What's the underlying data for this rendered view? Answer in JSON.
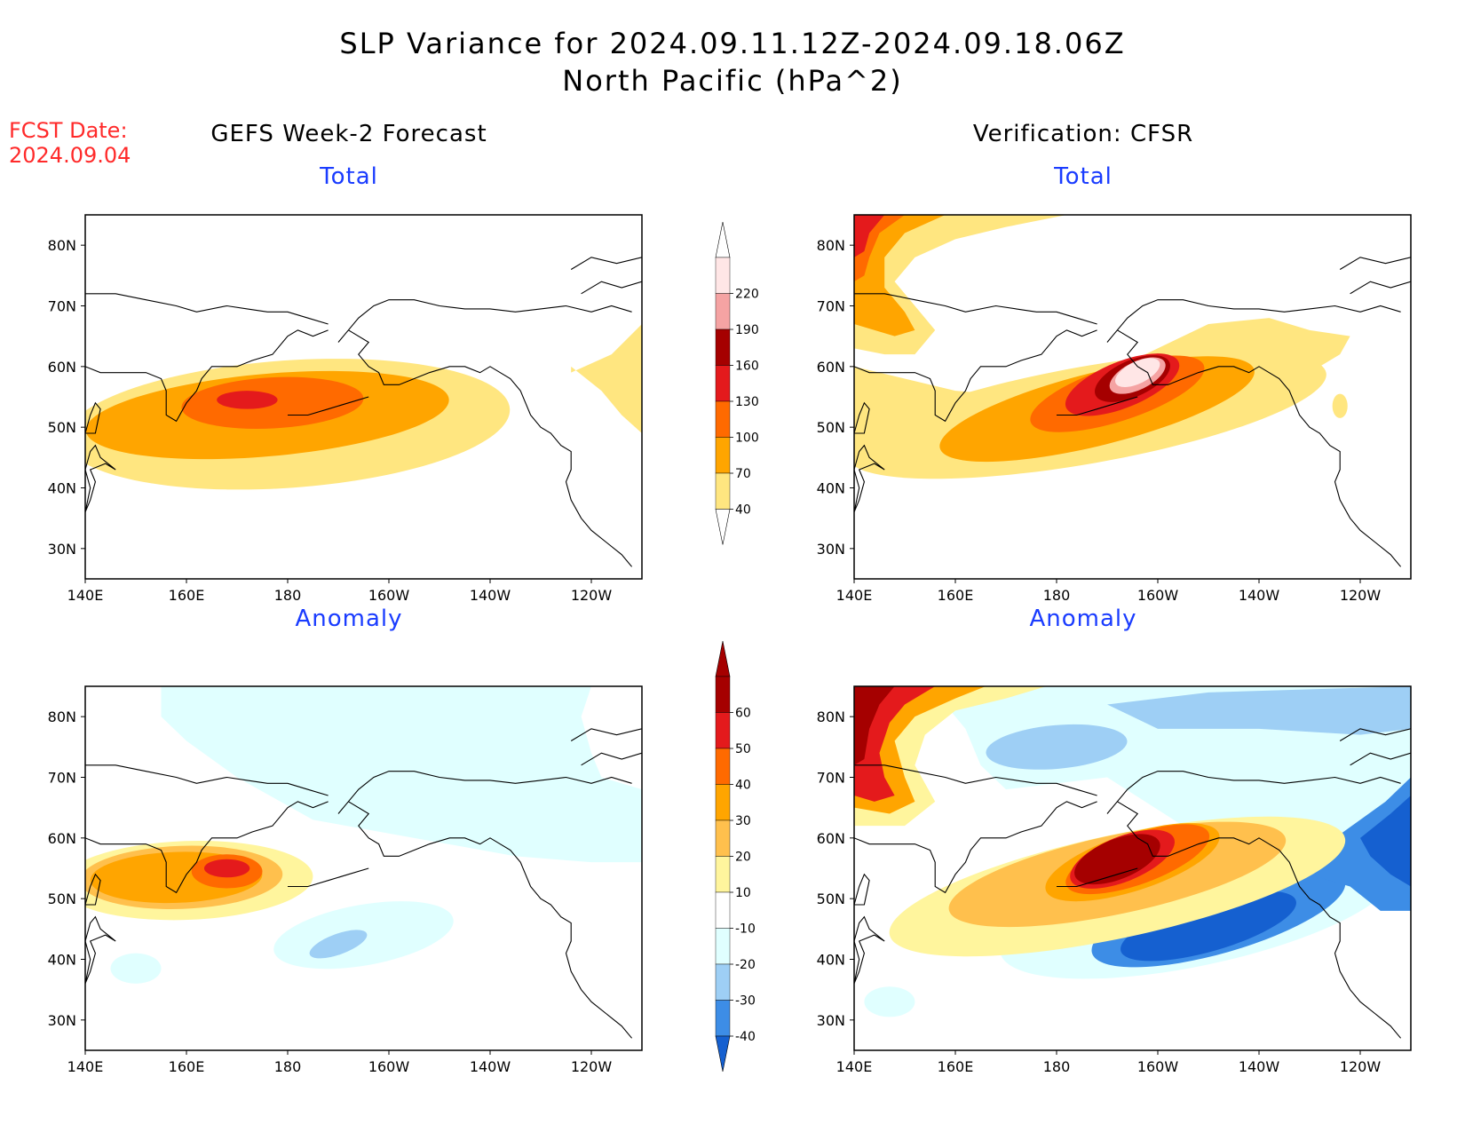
{
  "header": {
    "title_line1": "SLP Variance for 2024.09.11.12Z-2024.09.18.06Z",
    "title_line2": "North Pacific (hPa^2)",
    "fcst_label": "FCST Date:",
    "fcst_date": "2024.09.04"
  },
  "columns": {
    "left_title": "GEFS Week-2 Forecast",
    "right_title": "Verification: CFSR"
  },
  "panels": {
    "top_left_subtitle": "Total",
    "top_right_subtitle": "Total",
    "bottom_left_subtitle": "Anomaly",
    "bottom_right_subtitle": "Anomaly"
  },
  "axes": {
    "lat_ticks": [
      "80N",
      "70N",
      "60N",
      "50N",
      "40N",
      "30N"
    ],
    "lat_values": [
      80,
      70,
      60,
      50,
      40,
      30
    ],
    "lon_ticks": [
      "140E",
      "160E",
      "180",
      "160W",
      "140W",
      "120W"
    ],
    "lon_values": [
      140,
      160,
      180,
      200,
      220,
      240
    ],
    "lat_range": [
      25,
      85
    ],
    "lon_range": [
      140,
      250
    ]
  },
  "colorbars": {
    "total": {
      "levels": [
        "40",
        "70",
        "100",
        "130",
        "160",
        "190",
        "220"
      ],
      "colors": [
        "#ffe680",
        "#ffa500",
        "#ff6a00",
        "#e41a1c",
        "#a50000",
        "#f5a3a3",
        "#ffe6e6"
      ]
    },
    "anomaly": {
      "levels": [
        "60",
        "50",
        "40",
        "30",
        "20",
        "10",
        "-10",
        "-20",
        "-30",
        "-40"
      ],
      "colors": [
        "#a50000",
        "#e41a1c",
        "#ff6a00",
        "#ffa500",
        "#ffc04d",
        "#fff59d",
        "#ffffff",
        "#e0ffff",
        "#9ecff5",
        "#3d8de6",
        "#1560d0"
      ]
    }
  }
}
